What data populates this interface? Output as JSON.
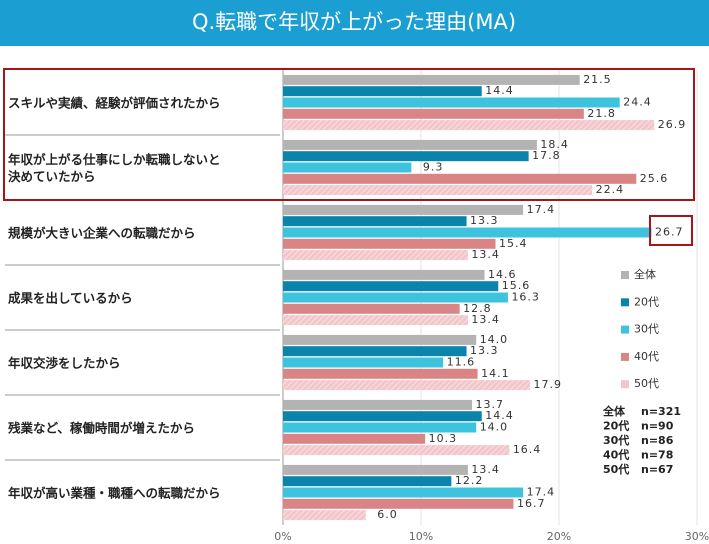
{
  "chart_data": {
    "type": "hbar",
    "title": "Q.転職で年収が上がった理由(MA)",
    "categories": [
      "スキルや実績、経験が評価されたから",
      "年収が上がる仕事にしか転職しないと\n決めていたから",
      "規模が大きい企業への転職だから",
      "成果を出しているから",
      "年収交渉をしたから",
      "残業など、稼働時間が増えたから",
      "年収が高い業種・職種への転職だから"
    ],
    "series": [
      {
        "name": "全体",
        "color": "#b3b3b3",
        "values": [
          21.5,
          18.4,
          17.4,
          14.6,
          14.0,
          13.7,
          13.4
        ],
        "value_labels": [
          "21.5",
          "18.4",
          "17.4",
          "14.6",
          "14.0",
          "13.7",
          "13.4"
        ]
      },
      {
        "name": "20代",
        "color": "#0a84ab",
        "values": [
          14.4,
          17.8,
          13.3,
          15.6,
          13.3,
          14.4,
          12.2
        ],
        "value_labels": [
          "14.4",
          "17.8",
          "13.3",
          "15.6",
          "13.3",
          "14.4",
          "12.2"
        ]
      },
      {
        "name": "30代",
        "color": "#3ec3df",
        "values": [
          24.4,
          9.3,
          26.7,
          16.3,
          11.6,
          14.0,
          17.4
        ],
        "value_labels": [
          "24.4",
          "9.3",
          "26.7",
          "16.3",
          "11.6",
          "14.0",
          "17.4"
        ]
      },
      {
        "name": "40代",
        "color": "#d98585",
        "values": [
          21.8,
          25.6,
          15.4,
          12.8,
          14.1,
          10.3,
          16.7
        ],
        "value_labels": [
          "21.8",
          "25.6",
          "15.4",
          "12.8",
          "14.1",
          "10.3",
          "16.7"
        ]
      },
      {
        "name": "50代",
        "color": "#f3c6cb",
        "values": [
          26.9,
          22.4,
          13.4,
          13.4,
          17.9,
          16.4,
          6.0
        ],
        "value_labels": [
          "26.9",
          "22.4",
          "13.4",
          "13.4",
          "17.9",
          "16.4",
          "6.0"
        ]
      }
    ],
    "xlim": [
      0,
      30
    ],
    "xticks": [
      {
        "value": 0,
        "label": "0%"
      },
      {
        "value": 10,
        "label": "10%"
      },
      {
        "value": 20,
        "label": "20%"
      },
      {
        "value": 30,
        "label": "30%"
      }
    ],
    "sample_sizes": [
      [
        "全体",
        "n=321"
      ],
      [
        "20代",
        "n=90"
      ],
      [
        "30代",
        "n=86"
      ],
      [
        "40代",
        "n=78"
      ],
      [
        "50代",
        "n=67"
      ]
    ]
  }
}
